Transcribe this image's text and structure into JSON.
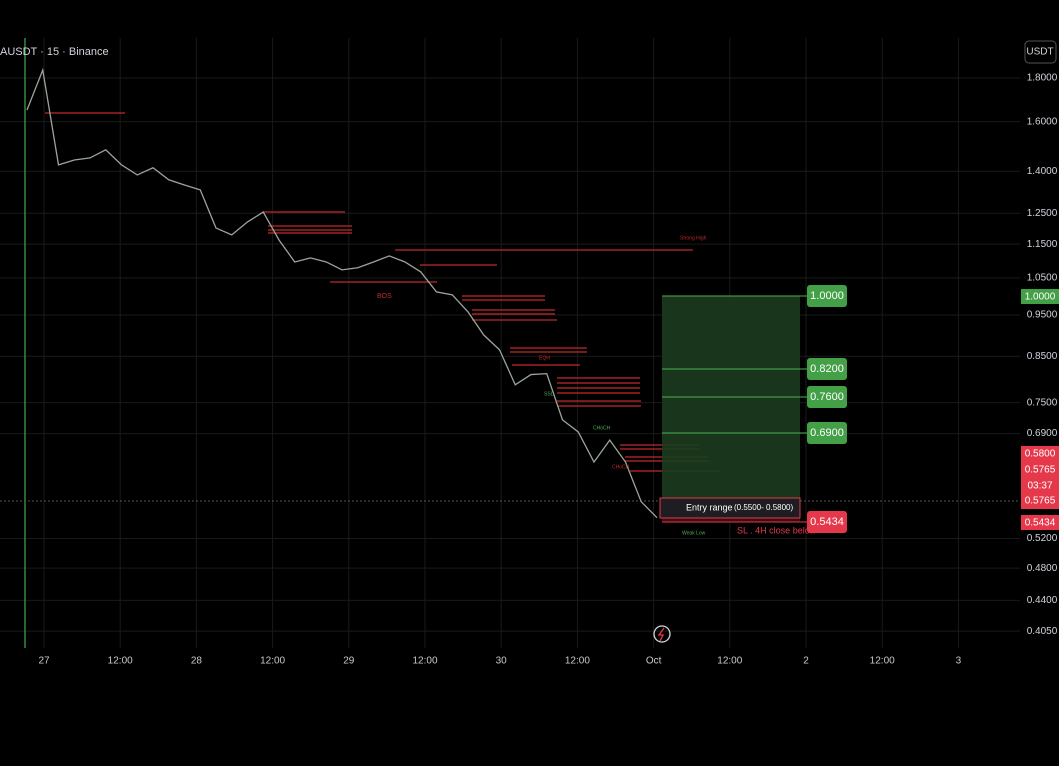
{
  "header": {
    "symbol": "AUSDT · 15 · Binance",
    "currency": "USDT"
  },
  "price_axis": {
    "log": true,
    "ylim": [
      0.387,
      2.005
    ],
    "yticks": [
      {
        "value": 1.8,
        "label": "1.8000"
      },
      {
        "value": 1.6,
        "label": "1.6000"
      },
      {
        "value": 1.4,
        "label": "1.4000"
      },
      {
        "value": 1.25,
        "label": "1.2500"
      },
      {
        "value": 1.15,
        "label": "1.1500"
      },
      {
        "value": 1.05,
        "label": "1.0500"
      },
      {
        "value": 0.95,
        "label": "0.9500"
      },
      {
        "value": 0.85,
        "label": "0.8500"
      },
      {
        "value": 0.75,
        "label": "0.7500"
      },
      {
        "value": 0.69,
        "label": "0.6900"
      },
      {
        "value": 0.52,
        "label": "0.5200"
      },
      {
        "value": 0.48,
        "label": "0.4800"
      },
      {
        "value": 0.44,
        "label": "0.4400"
      },
      {
        "value": 0.405,
        "label": "0.4050"
      }
    ]
  },
  "time_axis": {
    "labels": [
      "27",
      "12:00",
      "28",
      "12:00",
      "29",
      "12:00",
      "30",
      "12:00",
      "Oct",
      "12:00",
      "2",
      "12:00",
      "3"
    ]
  },
  "price": {
    "values": [
      1.651,
      1.839,
      1.424,
      1.443,
      1.451,
      1.483,
      1.424,
      1.386,
      1.413,
      1.368,
      1.349,
      1.331,
      1.201,
      1.179,
      1.221,
      1.254,
      1.163,
      1.096,
      1.108,
      1.096,
      1.073,
      1.079,
      1.096,
      1.114,
      1.096,
      1.067,
      1.011,
      1.003,
      0.958,
      0.9,
      0.865,
      0.787,
      0.809,
      0.811,
      0.716,
      0.693,
      0.639,
      0.678,
      0.639,
      0.574,
      0.55
    ]
  },
  "badges": [
    "1.0000",
    "0.5800",
    "0.5765",
    "03:37",
    "0.5765",
    "0.5434"
  ],
  "annotations": {
    "strong_high": "Strong High",
    "bos": "BOS",
    "eqh": "EQH",
    "ssl": "SSL",
    "choch_1": "CHoCH",
    "choch_2": "CHoCH",
    "weak_low": "Weak Low"
  },
  "trade": {
    "targets": [
      "1.0000",
      "0.8200",
      "0.7600",
      "0.6900"
    ],
    "stop": "0.5434",
    "entry_label": "Entry range",
    "entry_range": "(0.5500- 0.5800)",
    "stop_note": "SL . 4H close below"
  }
}
